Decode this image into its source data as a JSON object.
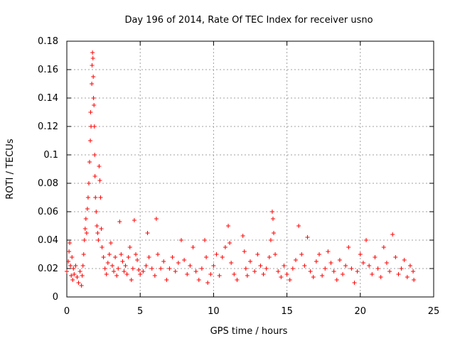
{
  "chart_data": {
    "type": "scatter",
    "title": "Day 196 of 2014, Rate Of TEC Index for receiver usno",
    "xlabel": "GPS time / hours",
    "ylabel": "ROTI / TECUs",
    "xlim": [
      0,
      25
    ],
    "ylim": [
      0,
      0.18
    ],
    "xticks": [
      0,
      5,
      10,
      15,
      20,
      25
    ],
    "yticks": [
      0,
      0.02,
      0.04,
      0.06,
      0.08,
      0.1,
      0.12,
      0.14,
      0.16,
      0.18
    ],
    "xtick_labels": [
      "0",
      "5",
      "10",
      "15",
      "20",
      "25"
    ],
    "ytick_labels": [
      "0",
      "0.02",
      "0.04",
      "0.06",
      "0.08",
      "0.1",
      "0.12",
      "0.14",
      "0.16",
      "0.18"
    ],
    "grid": true,
    "marker": "+",
    "color": "#ff0000",
    "series": [
      {
        "points": [
          [
            0.0,
            0.018
          ],
          [
            0.1,
            0.025
          ],
          [
            0.15,
            0.032
          ],
          [
            0.2,
            0.038
          ],
          [
            0.25,
            0.022
          ],
          [
            0.3,
            0.015
          ],
          [
            0.35,
            0.028
          ],
          [
            0.4,
            0.012
          ],
          [
            0.45,
            0.02
          ],
          [
            0.5,
            0.016
          ],
          [
            0.6,
            0.022
          ],
          [
            0.7,
            0.014
          ],
          [
            0.8,
            0.01
          ],
          [
            0.9,
            0.018
          ],
          [
            1.0,
            0.008
          ],
          [
            1.05,
            0.015
          ],
          [
            1.1,
            0.022
          ],
          [
            1.15,
            0.03
          ],
          [
            1.2,
            0.04
          ],
          [
            1.25,
            0.048
          ],
          [
            1.3,
            0.055
          ],
          [
            1.35,
            0.045
          ],
          [
            1.4,
            0.062
          ],
          [
            1.45,
            0.07
          ],
          [
            1.5,
            0.08
          ],
          [
            1.55,
            0.095
          ],
          [
            1.6,
            0.11
          ],
          [
            1.62,
            0.13
          ],
          [
            1.65,
            0.12
          ],
          [
            1.7,
            0.15
          ],
          [
            1.72,
            0.163
          ],
          [
            1.75,
            0.172
          ],
          [
            1.78,
            0.168
          ],
          [
            1.8,
            0.155
          ],
          [
            1.82,
            0.14
          ],
          [
            1.85,
            0.135
          ],
          [
            1.88,
            0.12
          ],
          [
            1.9,
            0.1
          ],
          [
            1.92,
            0.085
          ],
          [
            1.95,
            0.07
          ],
          [
            2.0,
            0.06
          ],
          [
            2.05,
            0.05
          ],
          [
            2.1,
            0.045
          ],
          [
            2.15,
            0.04
          ],
          [
            2.2,
            0.092
          ],
          [
            2.25,
            0.082
          ],
          [
            2.3,
            0.07
          ],
          [
            2.35,
            0.048
          ],
          [
            2.4,
            0.035
          ],
          [
            2.5,
            0.028
          ],
          [
            2.6,
            0.02
          ],
          [
            2.7,
            0.016
          ],
          [
            2.8,
            0.024
          ],
          [
            2.9,
            0.03
          ],
          [
            3.0,
            0.038
          ],
          [
            3.1,
            0.022
          ],
          [
            3.2,
            0.018
          ],
          [
            3.3,
            0.028
          ],
          [
            3.4,
            0.015
          ],
          [
            3.5,
            0.02
          ],
          [
            3.6,
            0.053
          ],
          [
            3.7,
            0.03
          ],
          [
            3.8,
            0.025
          ],
          [
            3.9,
            0.018
          ],
          [
            4.0,
            0.022
          ],
          [
            4.1,
            0.016
          ],
          [
            4.2,
            0.028
          ],
          [
            4.3,
            0.035
          ],
          [
            4.4,
            0.012
          ],
          [
            4.5,
            0.02
          ],
          [
            4.6,
            0.054
          ],
          [
            4.7,
            0.03
          ],
          [
            4.8,
            0.026
          ],
          [
            4.9,
            0.019
          ],
          [
            5.0,
            0.016
          ],
          [
            5.2,
            0.018
          ],
          [
            5.4,
            0.022
          ],
          [
            5.5,
            0.045
          ],
          [
            5.6,
            0.028
          ],
          [
            5.8,
            0.02
          ],
          [
            6.0,
            0.015
          ],
          [
            6.1,
            0.055
          ],
          [
            6.2,
            0.03
          ],
          [
            6.4,
            0.02
          ],
          [
            6.6,
            0.025
          ],
          [
            6.8,
            0.012
          ],
          [
            7.0,
            0.02
          ],
          [
            7.2,
            0.028
          ],
          [
            7.4,
            0.018
          ],
          [
            7.6,
            0.024
          ],
          [
            7.8,
            0.04
          ],
          [
            8.0,
            0.026
          ],
          [
            8.2,
            0.016
          ],
          [
            8.4,
            0.022
          ],
          [
            8.6,
            0.035
          ],
          [
            8.8,
            0.018
          ],
          [
            9.0,
            0.012
          ],
          [
            9.2,
            0.02
          ],
          [
            9.4,
            0.04
          ],
          [
            9.5,
            0.028
          ],
          [
            9.6,
            0.01
          ],
          [
            9.8,
            0.016
          ],
          [
            10.0,
            0.022
          ],
          [
            10.2,
            0.03
          ],
          [
            10.4,
            0.015
          ],
          [
            10.6,
            0.028
          ],
          [
            10.8,
            0.035
          ],
          [
            11.0,
            0.05
          ],
          [
            11.1,
            0.038
          ],
          [
            11.2,
            0.024
          ],
          [
            11.4,
            0.016
          ],
          [
            11.6,
            0.012
          ],
          [
            12.0,
            0.043
          ],
          [
            12.1,
            0.032
          ],
          [
            12.2,
            0.02
          ],
          [
            12.3,
            0.015
          ],
          [
            12.5,
            0.025
          ],
          [
            12.8,
            0.018
          ],
          [
            13.0,
            0.03
          ],
          [
            13.2,
            0.022
          ],
          [
            13.4,
            0.016
          ],
          [
            13.6,
            0.02
          ],
          [
            13.8,
            0.028
          ],
          [
            13.9,
            0.04
          ],
          [
            14.0,
            0.06
          ],
          [
            14.05,
            0.055
          ],
          [
            14.1,
            0.045
          ],
          [
            14.2,
            0.03
          ],
          [
            14.4,
            0.018
          ],
          [
            14.6,
            0.014
          ],
          [
            14.8,
            0.022
          ],
          [
            15.0,
            0.016
          ],
          [
            15.2,
            0.012
          ],
          [
            15.4,
            0.02
          ],
          [
            15.6,
            0.026
          ],
          [
            15.8,
            0.05
          ],
          [
            16.0,
            0.03
          ],
          [
            16.2,
            0.022
          ],
          [
            16.4,
            0.042
          ],
          [
            16.6,
            0.018
          ],
          [
            16.8,
            0.014
          ],
          [
            17.0,
            0.025
          ],
          [
            17.2,
            0.03
          ],
          [
            17.4,
            0.015
          ],
          [
            17.6,
            0.02
          ],
          [
            17.8,
            0.032
          ],
          [
            18.0,
            0.024
          ],
          [
            18.2,
            0.018
          ],
          [
            18.4,
            0.012
          ],
          [
            18.6,
            0.026
          ],
          [
            18.8,
            0.016
          ],
          [
            19.0,
            0.022
          ],
          [
            19.2,
            0.035
          ],
          [
            19.4,
            0.02
          ],
          [
            19.6,
            0.01
          ],
          [
            19.8,
            0.018
          ],
          [
            20.0,
            0.03
          ],
          [
            20.2,
            0.024
          ],
          [
            20.4,
            0.04
          ],
          [
            20.6,
            0.022
          ],
          [
            20.8,
            0.016
          ],
          [
            21.0,
            0.028
          ],
          [
            21.2,
            0.02
          ],
          [
            21.4,
            0.014
          ],
          [
            21.6,
            0.035
          ],
          [
            21.8,
            0.024
          ],
          [
            22.0,
            0.018
          ],
          [
            22.2,
            0.044
          ],
          [
            22.4,
            0.028
          ],
          [
            22.6,
            0.016
          ],
          [
            22.8,
            0.02
          ],
          [
            23.0,
            0.026
          ],
          [
            23.2,
            0.014
          ],
          [
            23.4,
            0.022
          ],
          [
            23.6,
            0.018
          ],
          [
            23.65,
            0.012
          ]
        ]
      }
    ]
  }
}
